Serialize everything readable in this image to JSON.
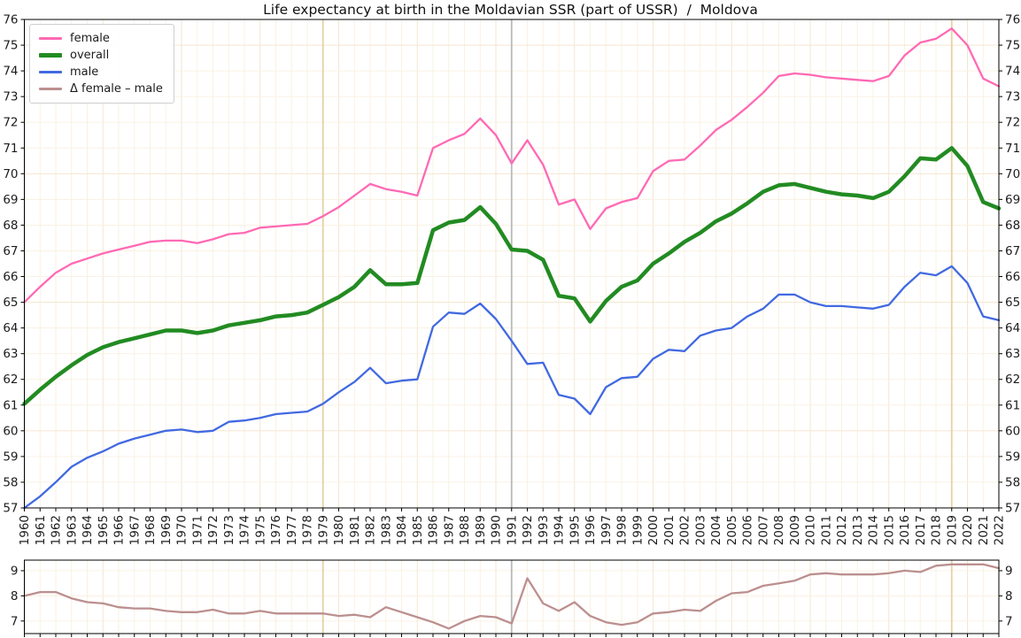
{
  "figure": {
    "title": "Life expectancy at birth in the Moldavian SSR (part of USSR)  /  Moldova",
    "background_color": "#ffffff",
    "grid_minor_color": "#faf0e0",
    "grid_major_color": "#f3e4ca"
  },
  "chart_data": {
    "type": "line",
    "title": "Life expectancy at birth in the Moldavian SSR (part of USSR)  /  Moldova",
    "legend_position": "upper-left",
    "grid": true,
    "x_label": "",
    "y_label": "",
    "x_range": [
      1960,
      2022
    ],
    "x_ticks": [
      1960,
      1961,
      1962,
      1963,
      1964,
      1965,
      1966,
      1967,
      1968,
      1969,
      1970,
      1971,
      1972,
      1973,
      1974,
      1975,
      1976,
      1977,
      1978,
      1979,
      1980,
      1981,
      1982,
      1983,
      1984,
      1985,
      1986,
      1987,
      1988,
      1989,
      1990,
      1991,
      1992,
      1993,
      1994,
      1995,
      1996,
      1997,
      1998,
      1999,
      2000,
      2001,
      2002,
      2003,
      2004,
      2005,
      2006,
      2007,
      2008,
      2009,
      2010,
      2011,
      2012,
      2013,
      2014,
      2015,
      2016,
      2017,
      2018,
      2019,
      2020,
      2021,
      2022
    ],
    "main_axis": {
      "y_min": 57,
      "y_max": 76,
      "ticks": [
        57,
        58,
        59,
        60,
        61,
        62,
        63,
        64,
        65,
        66,
        67,
        68,
        69,
        70,
        71,
        72,
        73,
        74,
        75,
        76
      ],
      "label_sides": "both"
    },
    "delta_axis": {
      "y_min": 6.5,
      "y_max": 9.42,
      "ticks": [
        7,
        8,
        9
      ],
      "label_sides": "both"
    },
    "vlines": [
      {
        "x": 1979,
        "color": "#e5d2a5"
      },
      {
        "x": 1991,
        "color": "#b9b9b9"
      },
      {
        "x": 2019,
        "color": "#e5d2a5"
      }
    ],
    "series": [
      {
        "id": "female",
        "name": "female",
        "color": "#ff69b4",
        "line_width": 2.3,
        "axis": "main",
        "values": [
          65.0,
          65.6,
          66.15,
          66.5,
          66.7,
          66.9,
          67.05,
          67.2,
          67.35,
          67.4,
          67.4,
          67.3,
          67.45,
          67.65,
          67.7,
          67.9,
          67.95,
          68.0,
          68.05,
          68.35,
          68.7,
          69.15,
          69.6,
          69.4,
          69.3,
          69.15,
          71.0,
          71.3,
          71.55,
          72.15,
          71.5,
          70.4,
          71.3,
          70.35,
          68.8,
          69.0,
          67.85,
          68.65,
          68.9,
          69.05,
          70.1,
          70.5,
          70.55,
          71.1,
          71.7,
          72.1,
          72.6,
          73.15,
          73.8,
          73.9,
          73.85,
          73.75,
          73.7,
          73.65,
          73.6,
          73.8,
          74.6,
          75.1,
          75.25,
          75.65,
          75.0,
          73.7,
          73.4
        ]
      },
      {
        "id": "overall",
        "name": "overall",
        "color": "#228b22",
        "line_width": 4.5,
        "axis": "main",
        "values": [
          61.05,
          61.6,
          62.1,
          62.55,
          62.95,
          63.25,
          63.45,
          63.6,
          63.75,
          63.9,
          63.9,
          63.8,
          63.9,
          64.1,
          64.2,
          64.3,
          64.45,
          64.5,
          64.6,
          64.9,
          65.2,
          65.6,
          66.25,
          65.7,
          65.7,
          65.75,
          67.8,
          68.1,
          68.2,
          68.7,
          68.05,
          67.05,
          67.0,
          66.65,
          65.25,
          65.15,
          64.25,
          65.05,
          65.6,
          65.85,
          66.5,
          66.9,
          67.35,
          67.7,
          68.15,
          68.45,
          68.85,
          69.3,
          69.55,
          69.6,
          69.45,
          69.3,
          69.2,
          69.15,
          69.05,
          69.3,
          69.9,
          70.6,
          70.55,
          71.0,
          70.3,
          68.9,
          68.65
        ]
      },
      {
        "id": "male",
        "name": "male",
        "color": "#4169e1",
        "line_width": 2.3,
        "axis": "main",
        "values": [
          57.0,
          57.45,
          58.0,
          58.6,
          58.95,
          59.2,
          59.5,
          59.7,
          59.85,
          60.0,
          60.05,
          59.95,
          60.0,
          60.35,
          60.4,
          60.5,
          60.65,
          60.7,
          60.75,
          61.05,
          61.5,
          61.9,
          62.45,
          61.85,
          61.95,
          62.0,
          64.05,
          64.6,
          64.55,
          64.95,
          64.35,
          63.5,
          62.6,
          62.65,
          61.4,
          61.25,
          60.65,
          61.7,
          62.05,
          62.1,
          62.8,
          63.15,
          63.1,
          63.7,
          63.9,
          64.0,
          64.45,
          64.75,
          65.3,
          65.3,
          65.0,
          64.85,
          64.85,
          64.8,
          64.75,
          64.9,
          65.6,
          66.15,
          66.05,
          66.4,
          65.75,
          64.45,
          64.3
        ]
      },
      {
        "id": "delta-female-male",
        "name": "Δ female – male",
        "color": "#bc8f8f",
        "line_width": 2.3,
        "axis": "delta",
        "values": [
          8.0,
          8.15,
          8.15,
          7.9,
          7.75,
          7.7,
          7.55,
          7.5,
          7.5,
          7.4,
          7.35,
          7.35,
          7.45,
          7.3,
          7.3,
          7.4,
          7.3,
          7.3,
          7.3,
          7.3,
          7.2,
          7.25,
          7.15,
          7.55,
          7.35,
          7.15,
          6.95,
          6.7,
          7.0,
          7.2,
          7.15,
          6.9,
          8.7,
          7.7,
          7.4,
          7.75,
          7.2,
          6.95,
          6.85,
          6.95,
          7.3,
          7.35,
          7.45,
          7.4,
          7.8,
          8.1,
          8.15,
          8.4,
          8.5,
          8.6,
          8.85,
          8.9,
          8.85,
          8.85,
          8.85,
          8.9,
          9.0,
          8.95,
          9.2,
          9.25,
          9.25,
          9.25,
          9.1
        ]
      }
    ]
  }
}
